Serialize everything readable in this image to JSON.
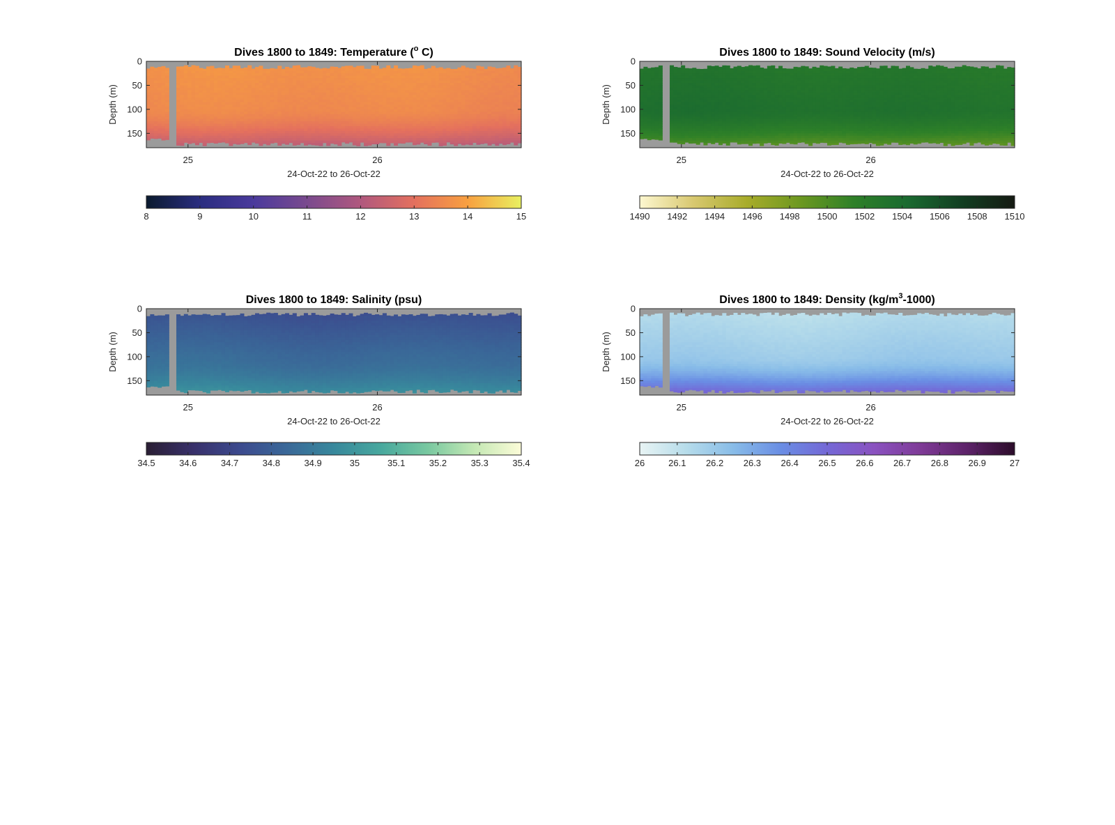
{
  "chart_data": [
    {
      "type": "heatmap",
      "title_text": "Dives 1800 to 1849: Temperature (",
      "title_sup": "o",
      "title_suffix": " C)",
      "ylabel": "Depth (m)",
      "xlabel": "24-Oct-22 to 26-Oct-22",
      "y_ticks": [
        "0",
        "50",
        "100",
        "150"
      ],
      "ylim": [
        0,
        180
      ],
      "y_reversed": true,
      "x_ticks": [
        "25",
        "26"
      ],
      "x_tick_values": [
        25,
        26
      ],
      "xlim": [
        24.78,
        26.76
      ],
      "gap_x": [
        24.9,
        24.94
      ],
      "colorbar": {
        "ticks": [
          "8",
          "9",
          "10",
          "11",
          "12",
          "13",
          "14",
          "15"
        ],
        "range": [
          8,
          15
        ],
        "colors": [
          "#0a1a2e",
          "#2a2d80",
          "#4a3a9c",
          "#7a4a8e",
          "#b0587e",
          "#e4705e",
          "#f8a040",
          "#e8f060"
        ]
      },
      "profile_summary": {
        "surface": 13.7,
        "mid": 13.5,
        "bottom": 12.1
      },
      "nan_color": "#9b9b9b"
    },
    {
      "type": "heatmap",
      "title_text": "Dives 1800 to 1849: Sound Velocity (m/s)",
      "title_sup": "",
      "title_suffix": "",
      "ylabel": "Depth (m)",
      "xlabel": "24-Oct-22 to 26-Oct-22",
      "y_ticks": [
        "0",
        "50",
        "100",
        "150"
      ],
      "ylim": [
        0,
        180
      ],
      "y_reversed": true,
      "x_ticks": [
        "25",
        "26"
      ],
      "x_tick_values": [
        25,
        26
      ],
      "xlim": [
        24.78,
        26.76
      ],
      "gap_x": [
        24.9,
        24.94
      ],
      "colorbar": {
        "ticks": [
          "1490",
          "1492",
          "1494",
          "1496",
          "1498",
          "1500",
          "1502",
          "1504",
          "1506",
          "1508",
          "1510"
        ],
        "range": [
          1490,
          1510
        ],
        "colors": [
          "#fdf7d0",
          "#d8c870",
          "#a8ac2a",
          "#6c9820",
          "#2e8028",
          "#1a6a30",
          "#123f22",
          "#151a12"
        ]
      },
      "profile_summary": {
        "surface": 1502.6,
        "mid": 1503.5,
        "bottom": 1499.0
      },
      "nan_color": "#9b9b9b"
    },
    {
      "type": "heatmap",
      "title_text": "Dives 1800 to 1849: Salinity (psu)",
      "title_sup": "",
      "title_suffix": "",
      "ylabel": "Depth (m)",
      "xlabel": "24-Oct-22 to 26-Oct-22",
      "y_ticks": [
        "0",
        "50",
        "100",
        "150"
      ],
      "ylim": [
        0,
        180
      ],
      "y_reversed": true,
      "x_ticks": [
        "25",
        "26"
      ],
      "x_tick_values": [
        25,
        26
      ],
      "xlim": [
        24.78,
        26.76
      ],
      "gap_x": [
        24.9,
        24.94
      ],
      "colorbar": {
        "ticks": [
          "34.5",
          "34.6",
          "34.7",
          "34.8",
          "34.9",
          "35",
          "35.1",
          "35.2",
          "35.3",
          "35.4"
        ],
        "range": [
          34.5,
          35.4
        ],
        "colors": [
          "#2a1e34",
          "#38306a",
          "#3c4a8e",
          "#3a6898",
          "#38889c",
          "#48a89e",
          "#78c8a0",
          "#c4e8b4",
          "#fcfcd8"
        ]
      },
      "profile_summary": {
        "surface": 34.74,
        "mid": 34.85,
        "bottom": 34.99
      },
      "nan_color": "#9b9b9b"
    },
    {
      "type": "heatmap",
      "title_text": "Dives 1800 to 1849: Density (kg/m",
      "title_sup": "3",
      "title_suffix": "-1000)",
      "ylabel": "Depth (m)",
      "xlabel": "24-Oct-22 to 26-Oct-22",
      "y_ticks": [
        "0",
        "50",
        "100",
        "150"
      ],
      "ylim": [
        0,
        180
      ],
      "y_reversed": true,
      "x_ticks": [
        "25",
        "26"
      ],
      "x_tick_values": [
        25,
        26
      ],
      "xlim": [
        24.78,
        26.76
      ],
      "gap_x": [
        24.9,
        24.94
      ],
      "colorbar": {
        "ticks": [
          "26",
          "26.1",
          "26.2",
          "26.3",
          "26.4",
          "26.5",
          "26.6",
          "26.7",
          "26.8",
          "26.9",
          "27"
        ],
        "range": [
          26,
          27
        ],
        "colors": [
          "#e8f4f4",
          "#b6dcea",
          "#88bce8",
          "#6a8ee4",
          "#7468d6",
          "#8a52c0",
          "#7e3a96",
          "#5c2268",
          "#2c0c2a"
        ]
      },
      "profile_summary": {
        "surface": 26.12,
        "mid": 26.2,
        "bottom": 26.55
      },
      "nan_color": "#9b9b9b"
    }
  ]
}
